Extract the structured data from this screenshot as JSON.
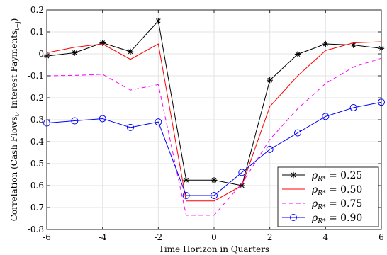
{
  "chart_data": {
    "type": "line",
    "xlabel": "Time Horizon in Quarters",
    "ylabel_main": "Correlation (Cash Flows",
    "ylabel_sub1": "t",
    "ylabel_mid": ", Interest Payments",
    "ylabel_sub2": "t−j",
    "ylabel_end": ")",
    "xlim": [
      -6,
      6
    ],
    "ylim": [
      -0.8,
      0.2
    ],
    "xticks": [
      -6,
      -4,
      -2,
      0,
      2,
      4,
      6
    ],
    "yticks": [
      -0.8,
      -0.7,
      -0.6,
      -0.5,
      -0.4,
      -0.3,
      -0.2,
      -0.1,
      0,
      0.1,
      0.2
    ],
    "xtick_labels": [
      "-6",
      "-4",
      "-2",
      "0",
      "2",
      "4",
      "6"
    ],
    "ytick_labels": [
      "-0.8",
      "-0.7",
      "-0.6",
      "-0.5",
      "-0.4",
      "-0.3",
      "-0.2",
      "-0.1",
      "0",
      "0.1",
      "0.2"
    ],
    "grid": true,
    "legend_placement": "bottom-right",
    "x": [
      -6,
      -5,
      -4,
      -3,
      -2,
      -1,
      0,
      1,
      2,
      3,
      4,
      5,
      6
    ],
    "series": [
      {
        "legend_sym": "ρ",
        "legend_sub": "R*",
        "legend_value": "= 0.25",
        "color": "#000000",
        "dash": "solid",
        "marker": "star",
        "values": [
          -0.01,
          0.005,
          0.05,
          0.01,
          0.15,
          -0.575,
          -0.575,
          -0.6,
          -0.12,
          -0.002,
          0.045,
          0.04,
          0.025
        ]
      },
      {
        "legend_sym": "ρ",
        "legend_sub": "R*",
        "legend_value": "= 0.50",
        "color": "#ff0000",
        "dash": "solid",
        "marker": "none",
        "values": [
          0.005,
          0.03,
          0.045,
          -0.025,
          0.045,
          -0.67,
          -0.67,
          -0.6,
          -0.24,
          -0.1,
          0.015,
          0.05,
          0.055
        ]
      },
      {
        "legend_sym": "ρ",
        "legend_sub": "R*",
        "legend_value": "= 0.75",
        "color": "#ff00ff",
        "dash": "dashed",
        "marker": "none",
        "values": [
          -0.1,
          -0.098,
          -0.093,
          -0.165,
          -0.14,
          -0.735,
          -0.735,
          -0.59,
          -0.39,
          -0.25,
          -0.135,
          -0.06,
          -0.02
        ]
      },
      {
        "legend_sym": "ρ",
        "legend_sub": "R*",
        "legend_value": "= 0.90",
        "color": "#0000ff",
        "dash": "solid",
        "marker": "circle",
        "values": [
          -0.315,
          -0.305,
          -0.295,
          -0.335,
          -0.31,
          -0.645,
          -0.645,
          -0.54,
          -0.435,
          -0.36,
          -0.285,
          -0.245,
          -0.22
        ]
      }
    ]
  }
}
